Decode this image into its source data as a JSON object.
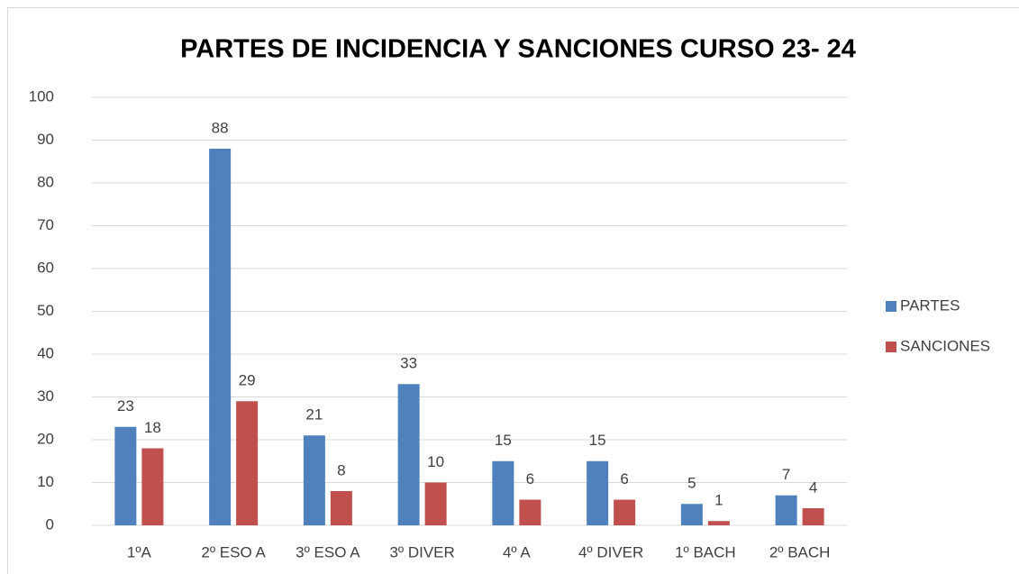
{
  "chart_data": {
    "type": "bar",
    "title": "PARTES DE INCIDENCIA Y SANCIONES CURSO 23- 24",
    "categories": [
      "1ºA",
      "2º ESO A",
      "3º ESO A",
      "3º DIVER",
      "4º A",
      "4º DIVER",
      "1º BACH",
      "2º BACH"
    ],
    "series": [
      {
        "name": "PARTES",
        "color": "#4f81bd",
        "values": [
          23,
          88,
          21,
          33,
          15,
          15,
          5,
          7
        ]
      },
      {
        "name": "SANCIONES",
        "color": "#c0504d",
        "values": [
          18,
          29,
          8,
          10,
          6,
          6,
          1,
          4
        ]
      }
    ],
    "ylim": [
      0,
      100
    ],
    "yticks": [
      0,
      10,
      20,
      30,
      40,
      50,
      60,
      70,
      80,
      90,
      100
    ],
    "grid": true,
    "legend": "right"
  }
}
